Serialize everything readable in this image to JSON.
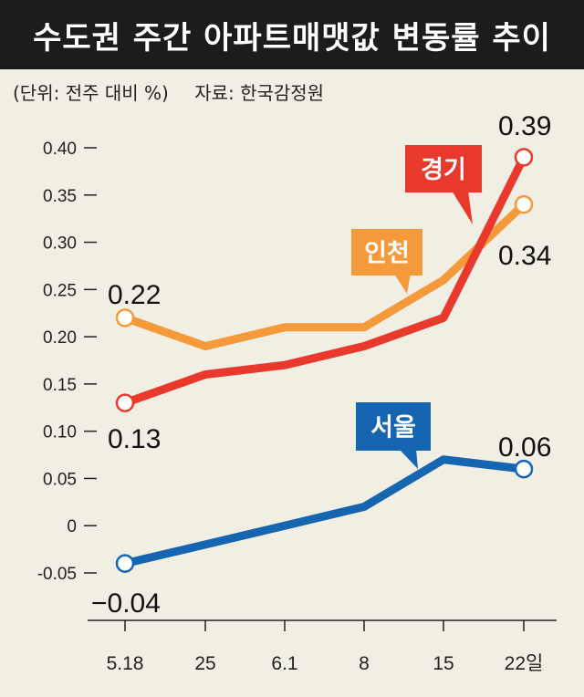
{
  "header": {
    "title": "수도권 주간 아파트매맷값 변동률 추이",
    "unit_note": "(단위: 전주 대비 %)",
    "source_note": "자료: 한국감정원"
  },
  "chart_data": {
    "type": "line",
    "title": "수도권 주간 아파트매맷값 변동률 추이",
    "categories": [
      "5.18",
      "25",
      "6.1",
      "8",
      "15",
      "22일"
    ],
    "ylim": [
      -0.05,
      0.4
    ],
    "yticks": [
      "0.40",
      "0.35",
      "0.30",
      "0.25",
      "0.20",
      "0.15",
      "0.10",
      "0.05",
      "0",
      "-0.05"
    ],
    "ytick_values": [
      0.4,
      0.35,
      0.3,
      0.25,
      0.2,
      0.15,
      0.1,
      0.05,
      0,
      -0.05
    ],
    "grid": false,
    "series": [
      {
        "name": "인천",
        "color": "#f59a3a",
        "values": [
          0.22,
          0.19,
          0.21,
          0.21,
          0.26,
          0.34
        ],
        "start_label": "0.22",
        "end_label": "0.34"
      },
      {
        "name": "경기",
        "color": "#e8392c",
        "values": [
          0.13,
          0.16,
          0.17,
          0.19,
          0.22,
          0.39
        ],
        "start_label": "0.13",
        "end_label": "0.39"
      },
      {
        "name": "서울",
        "color": "#1565b0",
        "values": [
          -0.04,
          -0.02,
          0.0,
          0.02,
          0.07,
          0.06
        ],
        "start_label": "-0.04",
        "end_label": "0.06"
      }
    ]
  }
}
